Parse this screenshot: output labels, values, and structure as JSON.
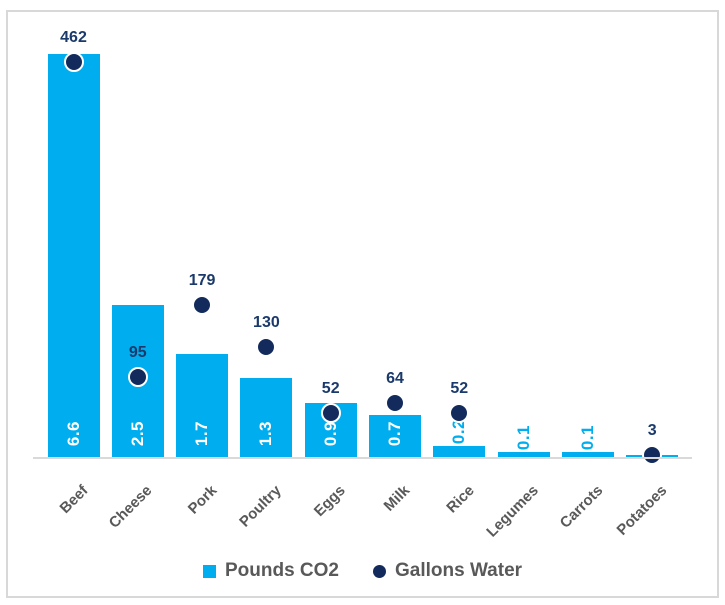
{
  "colors": {
    "bar": "#00AEEF",
    "dot": "#122B5C",
    "dot_label": "#1B3A6B",
    "bar_label_inside": "#FFFFFF",
    "bar_label_outside": "#00AEEF",
    "axis_label_text": "#595959",
    "axis_line": "#D9D9D9",
    "frame_border": "#D8D8D8",
    "legend_text": "#595959"
  },
  "chart_data": {
    "type": "bar",
    "subtype": "combo-bar-scatter",
    "title": "",
    "categories": [
      "Beef",
      "Cheese",
      "Pork",
      "Poultry",
      "Eggs",
      "Milk",
      "Rice",
      "Legumes",
      "Carrots",
      "Potatoes"
    ],
    "series": [
      {
        "name": "Pounds CO2",
        "type": "bar",
        "color": "#00AEEF",
        "values": [
          6.6,
          2.5,
          1.7,
          1.3,
          0.9,
          0.7,
          0.2,
          0.1,
          0.1,
          0.03
        ],
        "data_labels": [
          "6.6",
          "2.5",
          "1.7",
          "1.3",
          "0.9",
          "0.7",
          "0.2",
          "0.1",
          "0.1",
          ""
        ]
      },
      {
        "name": "Gallons Water",
        "type": "scatter",
        "color": "#122B5C",
        "values": [
          462,
          95,
          179,
          130,
          52,
          64,
          52,
          null,
          null,
          3
        ],
        "data_labels": [
          "462",
          "95",
          "179",
          "130",
          "52",
          "64",
          "52",
          "",
          "",
          "3"
        ]
      }
    ],
    "legend": {
      "position": "bottom",
      "entries": [
        "Pounds CO2",
        "Gallons Water"
      ]
    },
    "grid": false,
    "axes": {
      "y_axes_visible": false,
      "x_axis_line_visible": true,
      "x_labels_rotation_deg": 45
    }
  }
}
